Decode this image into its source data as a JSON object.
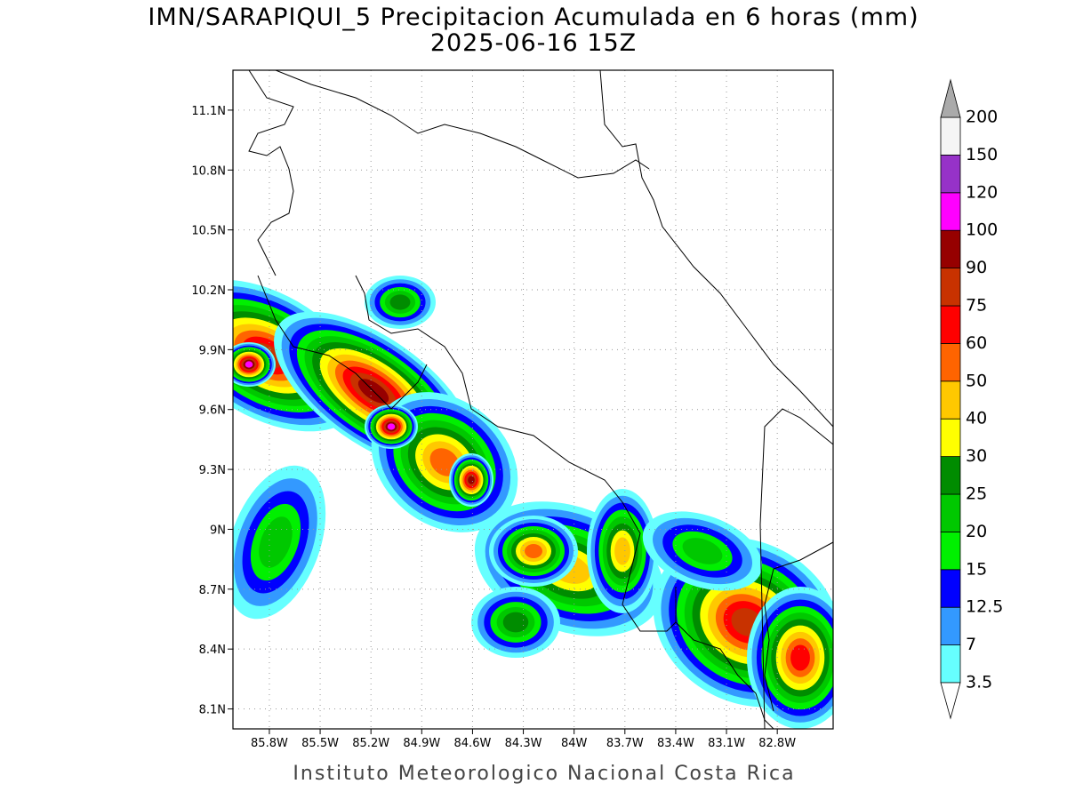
{
  "map": {
    "title": "IMN/SARAPIQUI_5 Precipitacion Acumulada en 6 horas (mm)",
    "subtitle": "2025-06-16 15Z",
    "footer": "Instituto Meteorologico Nacional Costa Rica",
    "xlim": [
      -86.015,
      -82.47
    ],
    "ylim": [
      8.0,
      11.3
    ],
    "xticks": [
      {
        "value": -85.8,
        "label": "85.8W"
      },
      {
        "value": -85.5,
        "label": "85.5W"
      },
      {
        "value": -85.2,
        "label": "85.2W"
      },
      {
        "value": -84.9,
        "label": "84.9W"
      },
      {
        "value": -84.6,
        "label": "84.6W"
      },
      {
        "value": -84.3,
        "label": "84.3W"
      },
      {
        "value": -84.0,
        "label": "84W"
      },
      {
        "value": -83.7,
        "label": "83.7W"
      },
      {
        "value": -83.4,
        "label": "83.4W"
      },
      {
        "value": -83.1,
        "label": "83.1W"
      },
      {
        "value": -82.8,
        "label": "82.8W"
      }
    ],
    "yticks": [
      {
        "value": 8.1,
        "label": "8.1N"
      },
      {
        "value": 8.4,
        "label": "8.4N"
      },
      {
        "value": 8.7,
        "label": "8.7N"
      },
      {
        "value": 9.0,
        "label": "9N"
      },
      {
        "value": 9.3,
        "label": "9.3N"
      },
      {
        "value": 9.6,
        "label": "9.6N"
      },
      {
        "value": 9.9,
        "label": "9.9N"
      },
      {
        "value": 10.2,
        "label": "10.2N"
      },
      {
        "value": 10.5,
        "label": "10.5N"
      },
      {
        "value": 10.8,
        "label": "10.8N"
      },
      {
        "value": 11.1,
        "label": "11.1N"
      }
    ],
    "grid": true,
    "colorbar": {
      "levels": [
        3.5,
        7,
        12.5,
        15,
        20,
        25,
        30,
        40,
        50,
        60,
        75,
        90,
        100,
        120,
        150,
        200
      ],
      "colors": [
        "#66ffff",
        "#3399ff",
        "#0000ff",
        "#00f000",
        "#00c800",
        "#008c00",
        "#ffff00",
        "#ffc800",
        "#ff6400",
        "#ff0000",
        "#c83200",
        "#960000",
        "#ff00ff",
        "#9632c8",
        "#f5f5f5"
      ],
      "under_color": "#ffffff",
      "over_color": "#aaaaaa"
    }
  }
}
